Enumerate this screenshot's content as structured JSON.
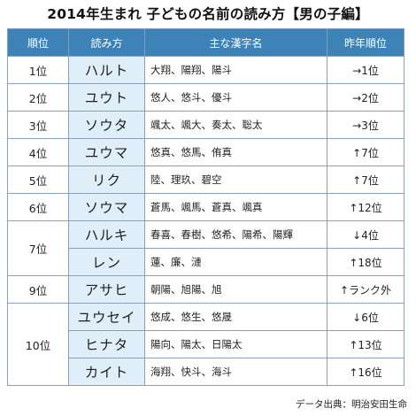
{
  "title": "2014年生まれ 子どもの名前の読み方【男の子編】",
  "headers": {
    "rank": "順位",
    "reading": "読み方",
    "kanji": "主な漢字名",
    "prev": "昨年順位"
  },
  "rows": [
    {
      "rank": "1位",
      "reading": "ハルト",
      "kanji": "大翔、陽翔、陽斗",
      "prev": "→1位"
    },
    {
      "rank": "2位",
      "reading": "ユウト",
      "kanji": "悠人、悠斗、優斗",
      "prev": "→2位"
    },
    {
      "rank": "3位",
      "reading": "ソウタ",
      "kanji": "颯太、颯大、奏太、聡太",
      "prev": "→3位"
    },
    {
      "rank": "4位",
      "reading": "ユウマ",
      "kanji": "悠真、悠馬、侑真",
      "prev": "↑7位"
    },
    {
      "rank": "5位",
      "reading": "リク",
      "kanji": "陸、理玖、碧空",
      "prev": "↑7位"
    },
    {
      "rank": "6位",
      "reading": "ソウマ",
      "kanji": "蒼馬、颯馬、蒼真、颯真",
      "prev": "↑12位"
    },
    {
      "rank": "7位",
      "reading": "ハルキ",
      "kanji": "春喜、春樹、悠希、陽希、陽輝",
      "prev": "↓4位"
    },
    {
      "rank": "",
      "reading": "レン",
      "kanji": "蓮、廉、漣",
      "prev": "↑18位"
    },
    {
      "rank": "9位",
      "reading": "アサヒ",
      "kanji": "朝陽、旭陽、旭",
      "prev": "↑ランク外"
    },
    {
      "rank": "10位",
      "reading": "ユウセイ",
      "kanji": "悠成、悠生、悠晟",
      "prev": "↓6位"
    },
    {
      "rank": "",
      "reading": "ヒナタ",
      "kanji": "陽向、陽太、日陽太",
      "prev": "↑13位"
    },
    {
      "rank": "",
      "reading": "カイト",
      "kanji": "海翔、快斗、海斗",
      "prev": "↑16位"
    }
  ],
  "source": "データ出典：明治安田生命",
  "colors": {
    "header_bg": "#3d83b8",
    "reading_bg": "#e0eefa",
    "border": "#8aa0b8"
  }
}
